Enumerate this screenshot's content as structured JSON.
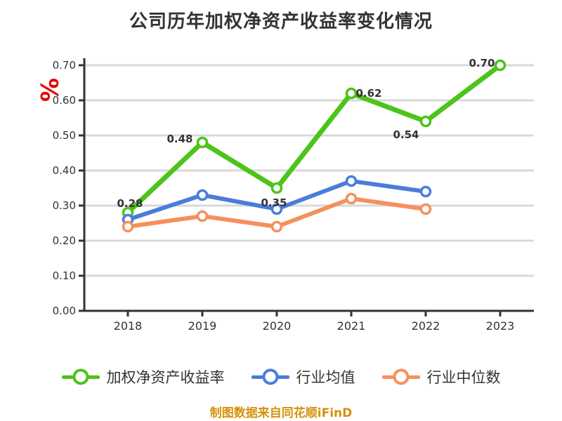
{
  "chart_data": {
    "type": "line",
    "title": "公司历年加权净资产收益率变化情况",
    "unit_label": "%",
    "categories": [
      "2018",
      "2019",
      "2020",
      "2021",
      "2022",
      "2023"
    ],
    "y_ticks": [
      "0.70",
      "0.60",
      "0.50",
      "0.40",
      "0.30",
      "0.20",
      "0.10",
      "0.00"
    ],
    "ylim": [
      0,
      0.7
    ],
    "grid": true,
    "legend_position": "bottom",
    "series": [
      {
        "name": "加权净资产收益率",
        "color": "#4cc41a",
        "values": [
          0.28,
          0.48,
          0.35,
          0.62,
          0.54,
          0.7
        ],
        "point_labels": [
          "0.28",
          "0.48",
          "0.35",
          "0.62",
          "0.54",
          "0.70"
        ]
      },
      {
        "name": "行业均值",
        "color": "#4a7ddb",
        "values": [
          0.26,
          0.33,
          0.29,
          0.37,
          0.34,
          null
        ],
        "point_labels": []
      },
      {
        "name": "行业中位数",
        "color": "#f5905d",
        "values": [
          0.24,
          0.27,
          0.24,
          0.32,
          0.29,
          null
        ],
        "point_labels": []
      }
    ],
    "source_note": "制图数据来自同花顺iFinD",
    "colors": {
      "title": "#333333",
      "axis": "#333333",
      "grid": "#d9d9d9",
      "tick_text": "#333333",
      "point_label_text": "#333333",
      "unit": "#e60000",
      "note": "#d4910d"
    }
  }
}
